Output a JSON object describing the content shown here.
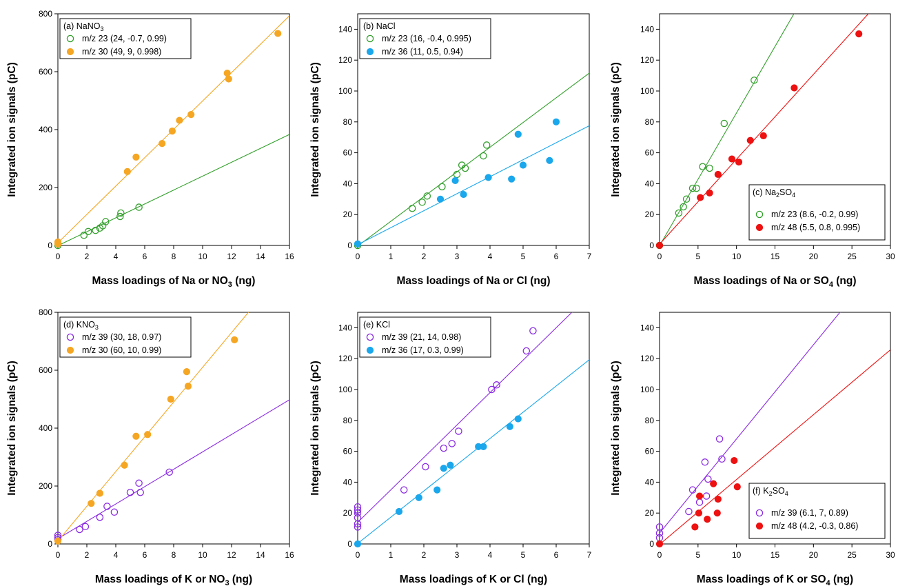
{
  "chart_data": [
    {
      "type": "scatter",
      "legend_title": [
        "(a) NaNO",
        "3",
        ""
      ],
      "legend_placement": "top-left",
      "xlabel": [
        "Mass loadings of Na or NO",
        "3",
        " (ng)"
      ],
      "ylabel": "Integrated ion signals (pC)",
      "xlim": [
        0,
        16
      ],
      "ylim": [
        0,
        800
      ],
      "xticks": [
        "0",
        "2",
        "4",
        "6",
        "8",
        "10",
        "12",
        "14",
        "16"
      ],
      "yticks": [
        "0",
        "200",
        "400",
        "600",
        "800"
      ],
      "series": [
        {
          "name": "m/z 23 (24, -0.7, 0.99)",
          "color": "#33a02c",
          "marker": "open",
          "fit": {
            "slope": 24,
            "intercept": -0.7
          },
          "x": [
            0,
            1.8,
            2.1,
            2.6,
            2.9,
            3.1,
            3.3,
            4.3,
            4.35,
            5.6
          ],
          "y": [
            0,
            35,
            48,
            52,
            60,
            68,
            82,
            100,
            112,
            132
          ]
        },
        {
          "name": "m/z 30 (49, 9, 0.998)",
          "color": "#f5a623",
          "marker": "filled",
          "fit": {
            "slope": 49,
            "intercept": 9
          },
          "x": [
            0,
            0,
            4.8,
            5.4,
            7.2,
            7.9,
            8.4,
            9.2,
            11.7,
            11.8,
            15.2
          ],
          "y": [
            5,
            12,
            255,
            305,
            352,
            395,
            432,
            452,
            595,
            575,
            732
          ]
        }
      ]
    },
    {
      "type": "scatter",
      "legend_title": [
        "(b) NaCl",
        "",
        ""
      ],
      "legend_placement": "top-left",
      "xlabel": [
        "Mass loadings of Na or Cl (ng)",
        "",
        ""
      ],
      "ylabel": "Integrated ion signals (pC)",
      "xlim": [
        0,
        7
      ],
      "ylim": [
        0,
        150
      ],
      "xticks": [
        "0",
        "1",
        "2",
        "3",
        "4",
        "5",
        "6",
        "7"
      ],
      "yticks": [
        "0",
        "20",
        "40",
        "60",
        "80",
        "100",
        "120",
        "140"
      ],
      "series": [
        {
          "name": "m/z 23 (16, -0.4, 0.995)",
          "color": "#33a02c",
          "marker": "open",
          "fit": {
            "slope": 16,
            "intercept": -0.4
          },
          "x": [
            0,
            1.65,
            1.95,
            2.1,
            2.55,
            3.0,
            3.15,
            3.25,
            3.8,
            3.9
          ],
          "y": [
            0,
            24,
            28,
            32,
            38,
            46,
            52,
            50,
            58,
            65
          ]
        },
        {
          "name": "m/z 36 (11, 0.5, 0.94)",
          "color": "#1aa7ec",
          "marker": "filled",
          "fit": {
            "slope": 11,
            "intercept": 0.5
          },
          "x": [
            0,
            2.5,
            2.95,
            3.2,
            3.95,
            4.65,
            4.85,
            5.0,
            5.8,
            6.0
          ],
          "y": [
            1,
            30,
            42,
            33,
            44,
            43,
            72,
            52,
            55,
            80
          ]
        }
      ]
    },
    {
      "type": "scatter",
      "legend_title": [
        "(c) Na",
        "2",
        "SO"
      ],
      "legend_title_sub2": "4",
      "legend_placement": "bottom-right",
      "xlabel": [
        "Mass loadings of Na or SO",
        "4",
        " (ng)"
      ],
      "ylabel": "Integrated ion signals (pC)",
      "xlim": [
        0,
        30
      ],
      "ylim": [
        0,
        150
      ],
      "xticks": [
        "0",
        "5",
        "10",
        "15",
        "20",
        "25",
        "30"
      ],
      "yticks": [
        "0",
        "20",
        "40",
        "60",
        "80",
        "100",
        "120",
        "140"
      ],
      "series": [
        {
          "name": "m/z 23 (8.6, -0.2, 0.99)",
          "color": "#33a02c",
          "marker": "open",
          "fit": {
            "slope": 8.6,
            "intercept": -0.2
          },
          "x": [
            0,
            2.5,
            3.1,
            3.5,
            4.3,
            4.8,
            5.6,
            6.5,
            8.4,
            12.3
          ],
          "y": [
            0,
            21,
            25,
            30,
            37,
            37,
            51,
            50,
            79,
            107
          ]
        },
        {
          "name": "m/z 48 (5.5, 0.8, 0.995)",
          "color": "#ee1111",
          "marker": "filled",
          "fit": {
            "slope": 5.5,
            "intercept": 0.8
          },
          "x": [
            0,
            5.3,
            6.5,
            7.6,
            9.4,
            10.3,
            11.8,
            13.5,
            17.5,
            25.9
          ],
          "y": [
            0,
            31,
            34,
            46,
            56,
            54,
            68,
            71,
            102,
            137
          ]
        }
      ]
    },
    {
      "type": "scatter",
      "legend_title": [
        "(d) KNO",
        "3",
        ""
      ],
      "legend_placement": "top-left",
      "xlabel": [
        "Mass loadings of K or NO",
        "3",
        " (ng)"
      ],
      "ylabel": "Integrated ion signals (pC)",
      "xlim": [
        0,
        16
      ],
      "ylim": [
        0,
        800
      ],
      "xticks": [
        "0",
        "2",
        "4",
        "6",
        "8",
        "10",
        "12",
        "14",
        "16"
      ],
      "yticks": [
        "0",
        "200",
        "400",
        "600",
        "800"
      ],
      "series": [
        {
          "name": "m/z 39 (30, 18, 0.97)",
          "color": "#8a2be2",
          "marker": "open",
          "fit": {
            "slope": 30,
            "intercept": 18
          },
          "x": [
            0,
            0,
            0,
            1.5,
            1.9,
            2.9,
            3.4,
            3.9,
            5.0,
            5.6,
            5.7,
            7.7
          ],
          "y": [
            15,
            22,
            30,
            50,
            60,
            92,
            130,
            110,
            178,
            210,
            178,
            248
          ]
        },
        {
          "name": "m/z 30 (60, 10, 0.99)",
          "color": "#f5a623",
          "marker": "filled",
          "fit": {
            "slope": 60,
            "intercept": 10
          },
          "x": [
            0,
            2.3,
            2.9,
            4.6,
            5.4,
            6.2,
            7.8,
            8.9,
            9.0,
            12.2
          ],
          "y": [
            10,
            140,
            175,
            272,
            372,
            378,
            500,
            595,
            545,
            705
          ]
        }
      ]
    },
    {
      "type": "scatter",
      "legend_title": [
        "(e) KCl",
        "",
        ""
      ],
      "legend_placement": "top-left",
      "xlabel": [
        "Mass loadings of K or Cl (ng)",
        "",
        ""
      ],
      "ylabel": "Integrated ion signals (pC)",
      "xlim": [
        0,
        7
      ],
      "ylim": [
        0,
        150
      ],
      "xticks": [
        "0",
        "1",
        "2",
        "3",
        "4",
        "5",
        "6",
        "7"
      ],
      "yticks": [
        "0",
        "20",
        "40",
        "60",
        "80",
        "100",
        "120",
        "140"
      ],
      "series": [
        {
          "name": "m/z 39 (21, 14, 0.98)",
          "color": "#8a2be2",
          "marker": "open",
          "fit": {
            "slope": 21,
            "intercept": 14
          },
          "x": [
            0,
            0,
            0,
            0,
            0,
            0,
            1.4,
            2.05,
            2.6,
            2.85,
            3.05,
            4.05,
            4.2,
            5.1,
            5.3
          ],
          "y": [
            11,
            13,
            17,
            20,
            22,
            24,
            35,
            50,
            62,
            65,
            73,
            100,
            103,
            125,
            138
          ]
        },
        {
          "name": "m/z 36 (17, 0.3, 0.99)",
          "color": "#1aa7ec",
          "marker": "filled",
          "fit": {
            "slope": 17,
            "intercept": 0.3
          },
          "x": [
            0,
            1.25,
            1.85,
            2.4,
            2.6,
            2.8,
            3.65,
            3.8,
            4.6,
            4.85
          ],
          "y": [
            0,
            21,
            30,
            35,
            49,
            51,
            63,
            63,
            76,
            81
          ]
        }
      ]
    },
    {
      "type": "scatter",
      "legend_title": [
        "(f) K",
        "2",
        "SO"
      ],
      "legend_title_sub2": "4",
      "legend_placement": "bottom-right",
      "xlabel": [
        "Mass loadings of K or SO",
        "4",
        " (ng)"
      ],
      "ylabel": "Integrated ion signals (pC)",
      "xlim": [
        0,
        30
      ],
      "ylim": [
        0,
        150
      ],
      "xticks": [
        "0",
        "5",
        "10",
        "15",
        "20",
        "25",
        "30"
      ],
      "yticks": [
        "0",
        "20",
        "40",
        "60",
        "80",
        "100",
        "120",
        "140"
      ],
      "series": [
        {
          "name": "m/z 39 (6.1, 7, 0.89)",
          "color": "#8a2be2",
          "marker": "open",
          "fit": {
            "slope": 6.1,
            "intercept": 7
          },
          "x": [
            0,
            0,
            0,
            3.8,
            4.3,
            5.2,
            5.9,
            6.3,
            6.1,
            7.8,
            8.1
          ],
          "y": [
            4,
            7,
            11,
            21,
            35,
            27,
            53,
            42,
            31,
            68,
            55
          ]
        },
        {
          "name": "m/z 48 (4.2, -0.3, 0.86)",
          "color": "#ee1111",
          "marker": "filled",
          "fit": {
            "slope": 4.2,
            "intercept": -0.3
          },
          "x": [
            0,
            4.6,
            5.1,
            5.2,
            6.2,
            7.0,
            7.5,
            7.6,
            9.7,
            10.1
          ],
          "y": [
            0,
            11,
            20,
            31,
            16,
            39,
            20,
            29,
            54,
            37
          ]
        }
      ]
    }
  ]
}
